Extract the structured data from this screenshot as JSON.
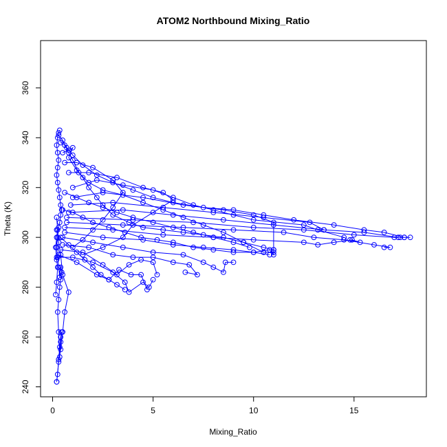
{
  "chart_data": {
    "type": "line",
    "title": "ATOM2 Northbound Mixing_Ratio",
    "xlabel": "Mixing_Ratio",
    "ylabel": "Theta (K)",
    "xlim": [
      -0.6,
      18.6
    ],
    "ylim": [
      236,
      379
    ],
    "x_ticks": [
      0,
      5,
      10,
      15
    ],
    "y_ticks": [
      240,
      260,
      280,
      300,
      320,
      340,
      360
    ],
    "grid": false,
    "legend": "none",
    "marker": "open-circle",
    "color": "#0000ff",
    "series": [
      {
        "segments": [
          [
            [
              0.2,
              242
            ],
            [
              0.25,
              245
            ],
            [
              0.3,
              251
            ],
            [
              0.35,
              256
            ],
            [
              0.4,
              260
            ],
            [
              0.45,
              262
            ],
            [
              0.4,
              258
            ],
            [
              0.35,
              252
            ],
            [
              0.3,
              262
            ],
            [
              0.25,
              270
            ],
            [
              0.3,
              275
            ],
            [
              0.35,
              280
            ],
            [
              0.4,
              283
            ],
            [
              0.45,
              286
            ],
            [
              0.4,
              288
            ],
            [
              0.35,
              284
            ],
            [
              0.3,
              288
            ],
            [
              0.25,
              292
            ],
            [
              0.2,
              296
            ],
            [
              0.25,
              300
            ],
            [
              0.3,
              304
            ],
            [
              0.35,
              306
            ],
            [
              0.4,
              309
            ],
            [
              0.45,
              311
            ],
            [
              0.4,
              313
            ],
            [
              0.35,
              316
            ],
            [
              0.3,
              319
            ],
            [
              0.25,
              322
            ],
            [
              0.2,
              325
            ],
            [
              0.25,
              328
            ],
            [
              0.3,
              331
            ],
            [
              0.25,
              334
            ],
            [
              0.2,
              337
            ],
            [
              0.25,
              340
            ],
            [
              0.3,
              342
            ],
            [
              0.35,
              343
            ]
          ],
          [
            [
              0.2,
              242
            ],
            [
              0.3,
              250
            ],
            [
              0.4,
              255
            ],
            [
              0.5,
              262
            ],
            [
              0.6,
              270
            ],
            [
              0.8,
              278
            ],
            [
              0.5,
              285
            ],
            [
              0.4,
              293
            ],
            [
              0.3,
              298
            ],
            [
              0.2,
              303
            ]
          ],
          [
            [
              0.15,
              277
            ],
            [
              0.2,
              282
            ],
            [
              0.25,
              288
            ],
            [
              0.2,
              291
            ],
            [
              0.15,
              296
            ],
            [
              0.2,
              300
            ],
            [
              0.25,
              303
            ],
            [
              0.2,
              308
            ]
          ],
          [
            [
              0.2,
              292
            ],
            [
              1.0,
              292
            ],
            [
              2.0,
              290
            ],
            [
              3.0,
              286
            ],
            [
              3.6,
              282
            ],
            [
              3.8,
              278
            ],
            [
              4.5,
              282
            ],
            [
              4.8,
              280
            ],
            [
              5.0,
              283
            ]
          ],
          [
            [
              0.3,
              293
            ],
            [
              1.2,
              290
            ],
            [
              2.2,
              285
            ],
            [
              2.8,
              283
            ],
            [
              3.3,
              287
            ],
            [
              3.9,
              285
            ],
            [
              4.4,
              285
            ],
            [
              4.7,
              279
            ]
          ],
          [
            [
              0.4,
              295
            ],
            [
              1.5,
              294
            ],
            [
              2.5,
              289
            ],
            [
              3.2,
              285
            ],
            [
              3.8,
              289
            ],
            [
              4.4,
              291
            ],
            [
              5.0,
              290
            ],
            [
              5.2,
              285
            ]
          ],
          [
            [
              0.5,
              297
            ],
            [
              1.8,
              296
            ],
            [
              3.0,
              293
            ],
            [
              4.0,
              292
            ],
            [
              5.0,
              292
            ],
            [
              6.0,
              290
            ],
            [
              6.8,
              289
            ],
            [
              7.2,
              285
            ],
            [
              6.6,
              286
            ]
          ],
          [
            [
              0.5,
              300
            ],
            [
              2.0,
              298
            ],
            [
              3.5,
              296
            ],
            [
              5.0,
              294
            ],
            [
              6.5,
              293
            ],
            [
              7.5,
              290
            ],
            [
              8.0,
              288
            ],
            [
              8.5,
              286
            ],
            [
              8.6,
              290
            ],
            [
              9.0,
              290
            ]
          ],
          [
            [
              0.6,
              302
            ],
            [
              2.5,
              300
            ],
            [
              4.5,
              299
            ],
            [
              6.0,
              297
            ],
            [
              7.5,
              296
            ],
            [
              9.0,
              295
            ],
            [
              10.0,
              294
            ],
            [
              10.8,
              295
            ],
            [
              11.0,
              293
            ],
            [
              11.0,
              295
            ]
          ],
          [
            [
              0.6,
              304
            ],
            [
              3.0,
              303
            ],
            [
              5.5,
              301
            ],
            [
              8.0,
              300
            ],
            [
              10.0,
              299
            ],
            [
              12.5,
              298
            ],
            [
              13.2,
              297
            ],
            [
              14.0,
              298
            ],
            [
              14.9,
              299
            ],
            [
              15.3,
              298
            ],
            [
              14.8,
              299
            ]
          ],
          [
            [
              0.7,
              306
            ],
            [
              3.5,
              305
            ],
            [
              6.5,
              304
            ],
            [
              9.0,
              303
            ],
            [
              11.5,
              302
            ],
            [
              13.0,
              300
            ],
            [
              14.5,
              299
            ],
            [
              16.0,
              297
            ],
            [
              16.8,
              296
            ],
            [
              16.5,
              296
            ]
          ],
          [
            [
              0.7,
              308
            ],
            [
              4.0,
              307
            ],
            [
              7.0,
              306
            ],
            [
              10.0,
              304
            ],
            [
              12.5,
              303
            ],
            [
              15.0,
              301
            ],
            [
              17.0,
              300
            ],
            [
              17.5,
              300
            ],
            [
              17.8,
              300
            ],
            [
              17.3,
              300
            ]
          ],
          [
            [
              0.8,
              310
            ],
            [
              3.5,
              311
            ],
            [
              6.0,
              309
            ],
            [
              8.5,
              307
            ],
            [
              11.0,
              305
            ],
            [
              13.5,
              303
            ],
            [
              15.5,
              302
            ],
            [
              17.2,
              300
            ]
          ],
          [
            [
              0.9,
              313
            ],
            [
              3.0,
              314
            ],
            [
              5.5,
              312
            ],
            [
              8.0,
              310
            ],
            [
              10.5,
              308
            ],
            [
              12.8,
              306
            ],
            [
              13.5,
              303
            ]
          ],
          [
            [
              1.0,
              316
            ],
            [
              2.5,
              318
            ],
            [
              4.5,
              316
            ],
            [
              6.5,
              313
            ],
            [
              8.5,
              311
            ],
            [
              10.0,
              309
            ],
            [
              11.0,
              306
            ],
            [
              11.0,
              294
            ],
            [
              10.5,
              294
            ]
          ],
          [
            [
              1.0,
              320
            ],
            [
              2.2,
              323
            ],
            [
              3.5,
              321
            ],
            [
              5.0,
              319
            ],
            [
              6.0,
              316
            ],
            [
              7.0,
              313
            ],
            [
              8.0,
              311
            ],
            [
              9.0,
              309
            ],
            [
              10.0,
              307
            ],
            [
              12.5,
              305
            ],
            [
              13.2,
              303
            ],
            [
              14.5,
              300
            ]
          ],
          [
            [
              0.8,
              326
            ],
            [
              1.8,
              326
            ],
            [
              3.2,
              324
            ],
            [
              4.5,
              320
            ],
            [
              5.5,
              318
            ],
            [
              6.0,
              315
            ],
            [
              5.0,
              310
            ],
            [
              4.0,
              305
            ],
            [
              3.5,
              300
            ],
            [
              2.5,
              296
            ],
            [
              1.5,
              293
            ]
          ],
          [
            [
              0.6,
              330
            ],
            [
              1.2,
              330
            ],
            [
              2.0,
              328
            ],
            [
              3.0,
              323
            ],
            [
              3.5,
              318
            ],
            [
              3.0,
              312
            ],
            [
              2.5,
              307
            ],
            [
              2.0,
              303
            ],
            [
              1.5,
              299
            ],
            [
              1.0,
              296
            ]
          ],
          [
            [
              0.5,
              334
            ],
            [
              0.8,
              335
            ],
            [
              1.0,
              336
            ],
            [
              0.8,
              332
            ],
            [
              1.2,
              327
            ],
            [
              1.5,
              324
            ],
            [
              1.8,
              320
            ],
            [
              2.2,
              316
            ],
            [
              2.5,
              313
            ],
            [
              3.0,
              309
            ],
            [
              3.8,
              306
            ],
            [
              4.5,
              304
            ],
            [
              5.5,
              303
            ],
            [
              6.5,
              302
            ],
            [
              7.5,
              301
            ],
            [
              8.5,
              300
            ],
            [
              9.5,
              298
            ],
            [
              10.5,
              296
            ],
            [
              11.0,
              295
            ]
          ],
          [
            [
              0.4,
              338
            ],
            [
              0.6,
              337
            ],
            [
              0.8,
              334
            ],
            [
              1.0,
              331
            ],
            [
              1.3,
              326
            ],
            [
              1.8,
              322
            ],
            [
              2.5,
              319
            ],
            [
              3.5,
              317
            ],
            [
              4.5,
              314
            ],
            [
              5.5,
              311
            ],
            [
              6.5,
              308
            ],
            [
              7.5,
              305
            ],
            [
              8.5,
              302
            ],
            [
              9.5,
              298
            ],
            [
              10.5,
              294
            ]
          ],
          [
            [
              0.3,
              341
            ],
            [
              0.5,
              339
            ],
            [
              0.7,
              336
            ],
            [
              1.0,
              333
            ],
            [
              1.5,
              329
            ],
            [
              2.2,
              325
            ],
            [
              3.0,
              322
            ],
            [
              4.0,
              319
            ],
            [
              5.0,
              316
            ],
            [
              6.0,
              314
            ],
            [
              7.5,
              312
            ],
            [
              9.0,
              311
            ],
            [
              10.5,
              309
            ],
            [
              12.0,
              307
            ],
            [
              14.0,
              305
            ],
            [
              15.5,
              303
            ],
            [
              16.5,
              302
            ],
            [
              17.5,
              300
            ]
          ],
          [
            [
              0.4,
              300
            ],
            [
              0.8,
              297
            ],
            [
              1.2,
              294
            ],
            [
              1.6,
              291
            ],
            [
              2.0,
              288
            ],
            [
              2.4,
              285
            ],
            [
              2.8,
              283
            ],
            [
              3.2,
              281
            ],
            [
              3.6,
              279
            ]
          ],
          [
            [
              0.5,
              311
            ],
            [
              1.0,
              310
            ],
            [
              1.5,
              308
            ],
            [
              2.0,
              306
            ],
            [
              2.8,
              304
            ],
            [
              3.6,
              302
            ],
            [
              4.4,
              300
            ],
            [
              5.2,
              299
            ],
            [
              6.0,
              298
            ],
            [
              7.0,
              296
            ],
            [
              8.0,
              295
            ],
            [
              9.0,
              294
            ],
            [
              10.0,
              294
            ],
            [
              10.8,
              293
            ]
          ],
          [
            [
              0.6,
              318
            ],
            [
              1.2,
              316
            ],
            [
              1.8,
              314
            ],
            [
              2.5,
              312
            ],
            [
              3.2,
              310
            ],
            [
              4.0,
              308
            ],
            [
              5.0,
              306
            ],
            [
              6.0,
              304
            ],
            [
              7.0,
              302
            ],
            [
              8.0,
              300
            ],
            [
              9.0,
              298
            ],
            [
              9.8,
              296
            ]
          ]
        ]
      }
    ]
  }
}
